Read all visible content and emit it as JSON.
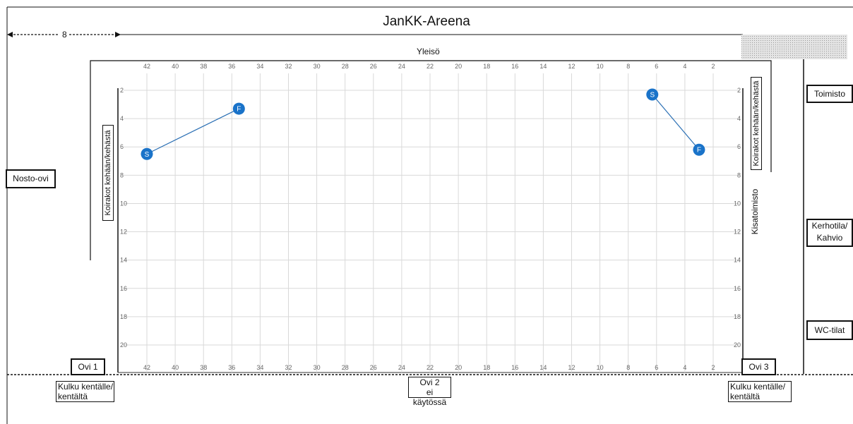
{
  "title": "JanKK-Areena",
  "distance_label": "8",
  "audience_label": "Yleisö",
  "rooms": {
    "office": "Toimisto",
    "club_line1": "Kerhotila/",
    "club_line2": "Kahvio",
    "wc": "WC-tilat",
    "lift_door": "Nosto-ovi",
    "competition_office": "Kisatoimisto"
  },
  "dogs_left": "Koirakot kehään/kehästä",
  "dogs_right": "Koirakot kehään/kehästä",
  "doors": {
    "door1": "Ovi 1",
    "door3": "Ovi 3",
    "door2_line1": "Ovi 2",
    "door2_line2": "ei käytössä",
    "access_left_line1": "Kulku kentälle/",
    "access_left_line2": "kentältä",
    "access_right_line1": "Kulku kentälle/",
    "access_right_line2": "kentältä"
  },
  "grid": {
    "x_ticks": [
      42,
      40,
      38,
      36,
      34,
      32,
      30,
      28,
      26,
      24,
      22,
      20,
      18,
      16,
      14,
      12,
      10,
      8,
      6,
      4,
      2
    ],
    "y_ticks": [
      2,
      4,
      6,
      8,
      10,
      12,
      14,
      16,
      18,
      20
    ]
  },
  "colors": {
    "marker": "#1a73c9",
    "line": "#2a6fb4",
    "grid": "#d9d9d9"
  },
  "markers": [
    {
      "label": "S",
      "x": 42,
      "y": 6.5
    },
    {
      "label": "F",
      "x": 35.5,
      "y": 3.3
    },
    {
      "label": "S",
      "x": 6.3,
      "y": 2.3
    },
    {
      "label": "F",
      "x": 3,
      "y": 6.2
    }
  ],
  "segments": [
    [
      0,
      1
    ],
    [
      2,
      3
    ]
  ]
}
